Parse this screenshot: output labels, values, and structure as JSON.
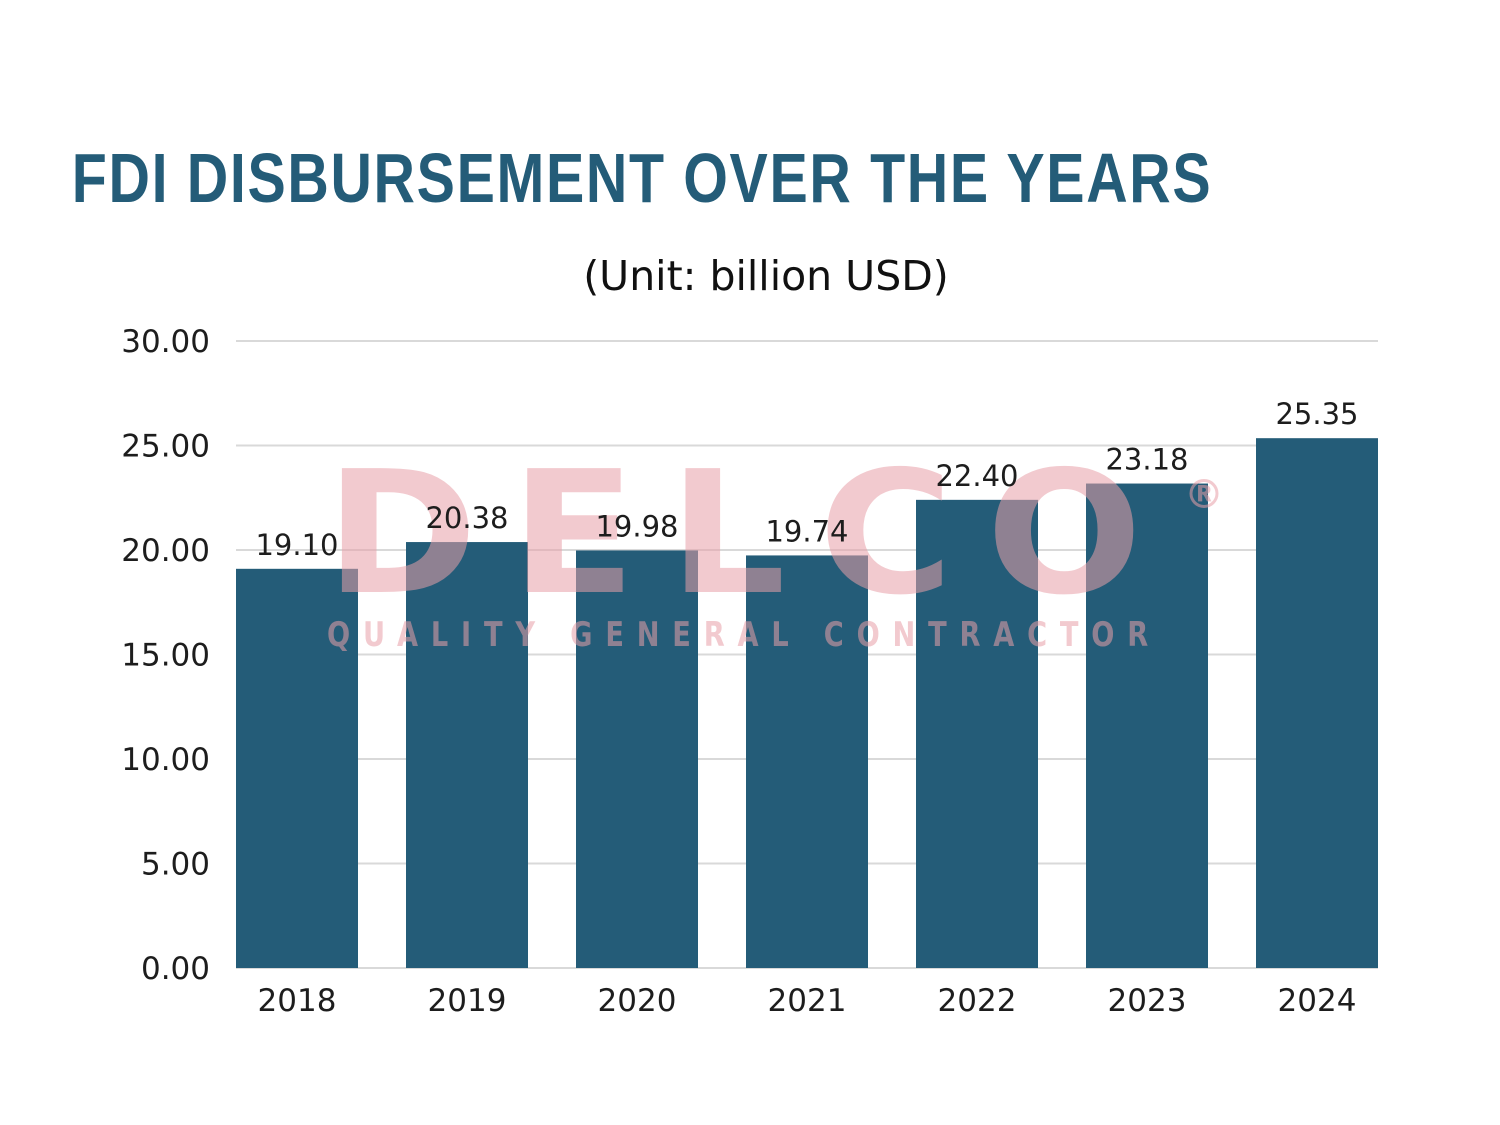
{
  "colors": {
    "bar": "#245c78",
    "title": "#245c78",
    "grid": "#d9d9d9",
    "watermark": "#e8a0a8"
  },
  "watermark": {
    "brand": "DELCO",
    "tagline": "QUALITY GENERAL CONTRACTOR",
    "mark": "®"
  },
  "chart_data": {
    "type": "bar",
    "title": "FDI DISBURSEMENT OVER THE YEARS",
    "subtitle": "(Unit: billion USD)",
    "xlabel": "",
    "ylabel": "",
    "categories": [
      "2018",
      "2019",
      "2020",
      "2021",
      "2022",
      "2023",
      "2024"
    ],
    "values": [
      19.1,
      20.38,
      19.98,
      19.74,
      22.4,
      23.18,
      25.35
    ],
    "data_labels": [
      "19.10",
      "20.38",
      "19.98",
      "19.74",
      "22.40",
      "23.18",
      "25.35"
    ],
    "ylim": [
      0,
      30
    ],
    "yticks": [
      0,
      5,
      10,
      15,
      20,
      25,
      30
    ],
    "ytick_labels": [
      "0.00",
      "5.00",
      "10.00",
      "15.00",
      "20.00",
      "25.00",
      "30.00"
    ],
    "grid": true,
    "legend": "none"
  }
}
